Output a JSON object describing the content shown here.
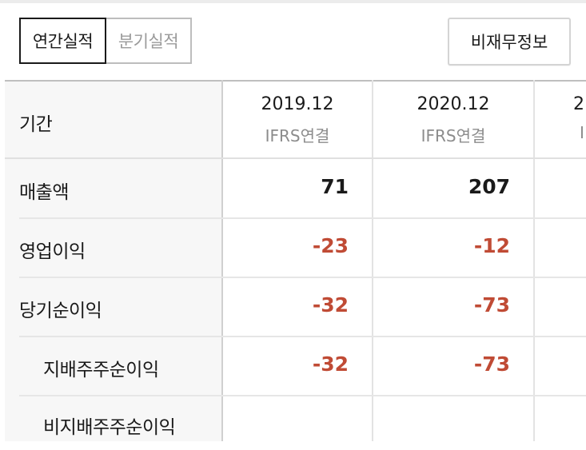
{
  "tabs": {
    "annual": "연간실적",
    "quarterly": "분기실적",
    "active": "annual"
  },
  "nonfinancial_button": "비재무정보",
  "table": {
    "period_header": "기간",
    "columns": [
      {
        "date": "2019.12",
        "basis": "IFRS연결"
      },
      {
        "date": "2020.12",
        "basis": "IFRS연결"
      },
      {
        "date": "2",
        "basis": "I"
      }
    ],
    "rows": [
      {
        "label": "매출액",
        "values": [
          "71",
          "207"
        ]
      },
      {
        "label": "영업이익",
        "values": [
          "-23",
          "-12"
        ]
      },
      {
        "label": "당기순이익",
        "values": [
          "-32",
          "-73"
        ]
      },
      {
        "label": "지배주주순이익",
        "values": [
          "-32",
          "-73"
        ]
      },
      {
        "label": "비지배주주순이익",
        "values": [
          "",
          ""
        ]
      }
    ]
  },
  "colors": {
    "negative": "#c04b35",
    "positive": "#1a1a1a",
    "muted": "#9a9a9a"
  }
}
